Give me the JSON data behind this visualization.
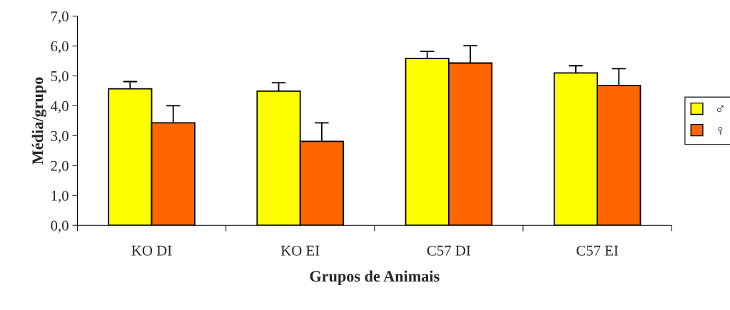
{
  "chart_data": {
    "type": "bar",
    "xlabel": "Grupos de Animais",
    "ylabel": "Média/grupo",
    "categories": [
      "KO DI",
      "KO EI",
      "C57 DI",
      "C57 EI"
    ],
    "series": [
      {
        "name": "♂",
        "color": "#ffff00",
        "values": [
          4.57,
          4.49,
          5.58,
          5.1
        ],
        "errors": [
          [
            4.57,
            4.81
          ],
          [
            4.49,
            4.77
          ],
          [
            5.58,
            5.82
          ],
          [
            5.1,
            5.34
          ]
        ]
      },
      {
        "name": "♀",
        "color": "#ff6600",
        "values": [
          3.43,
          2.81,
          5.43,
          4.68
        ],
        "errors": [
          [
            3.43,
            4.0
          ],
          [
            2.81,
            3.43
          ],
          [
            5.43,
            6.01
          ],
          [
            4.68,
            5.24
          ]
        ]
      }
    ],
    "ylim": [
      0,
      7
    ],
    "yticks": [
      {
        "value": 0,
        "label": "0,0"
      },
      {
        "value": 1,
        "label": "1,0"
      },
      {
        "value": 2,
        "label": "2,0"
      },
      {
        "value": 3,
        "label": "3,0"
      },
      {
        "value": 4,
        "label": "4,0"
      },
      {
        "value": 5,
        "label": "5,0"
      },
      {
        "value": 6,
        "label": "6,0"
      },
      {
        "value": 7,
        "label": "7,0"
      }
    ],
    "grid": false,
    "legend": "right"
  }
}
